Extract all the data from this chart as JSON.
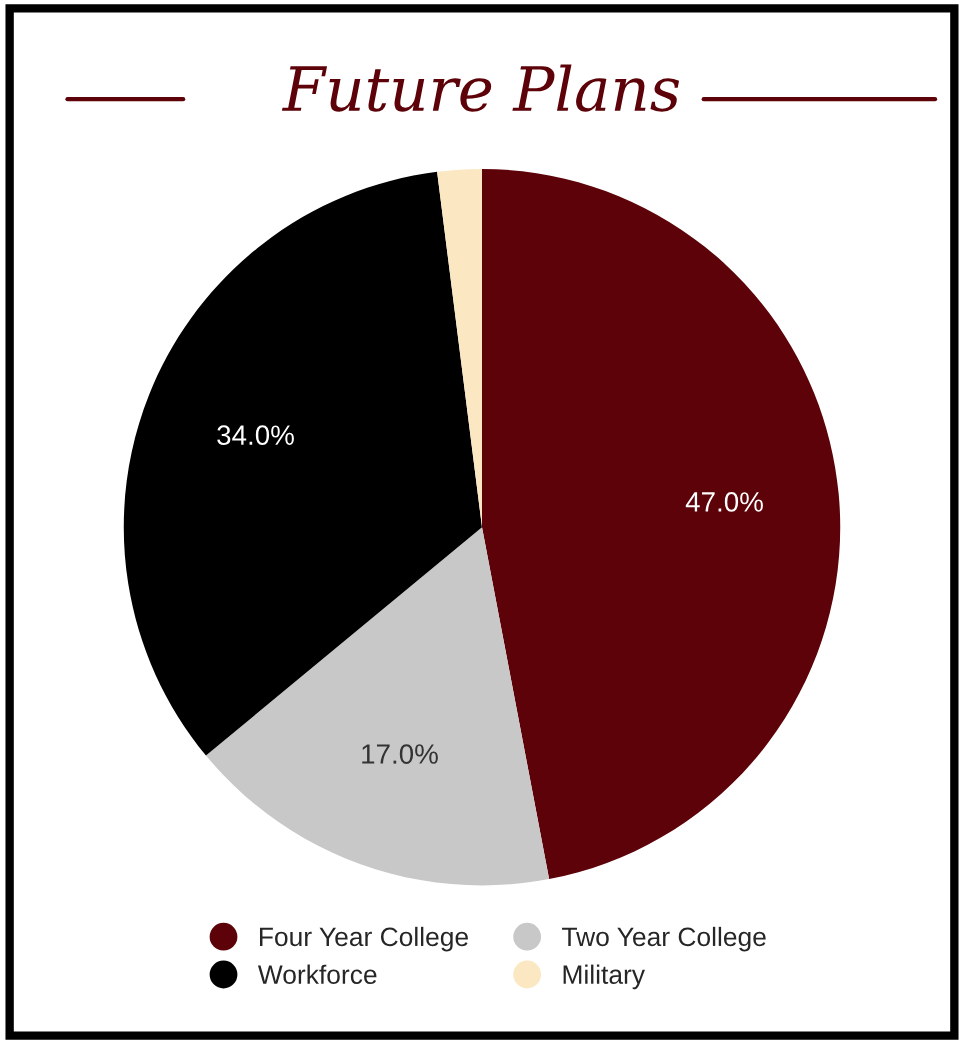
{
  "chart_data": {
    "type": "pie",
    "title": "Future Plans",
    "categories": [
      "Four Year College",
      "Two Year College",
      "Workforce",
      "Military"
    ],
    "values": [
      47,
      17,
      34,
      2
    ],
    "colors": [
      "#5c0208",
      "#c8c8c8",
      "#000000",
      "#fbe7c2"
    ],
    "value_labels": [
      "47.0%",
      "17.0%",
      "34.0%",
      null
    ],
    "legend": "bottom"
  }
}
